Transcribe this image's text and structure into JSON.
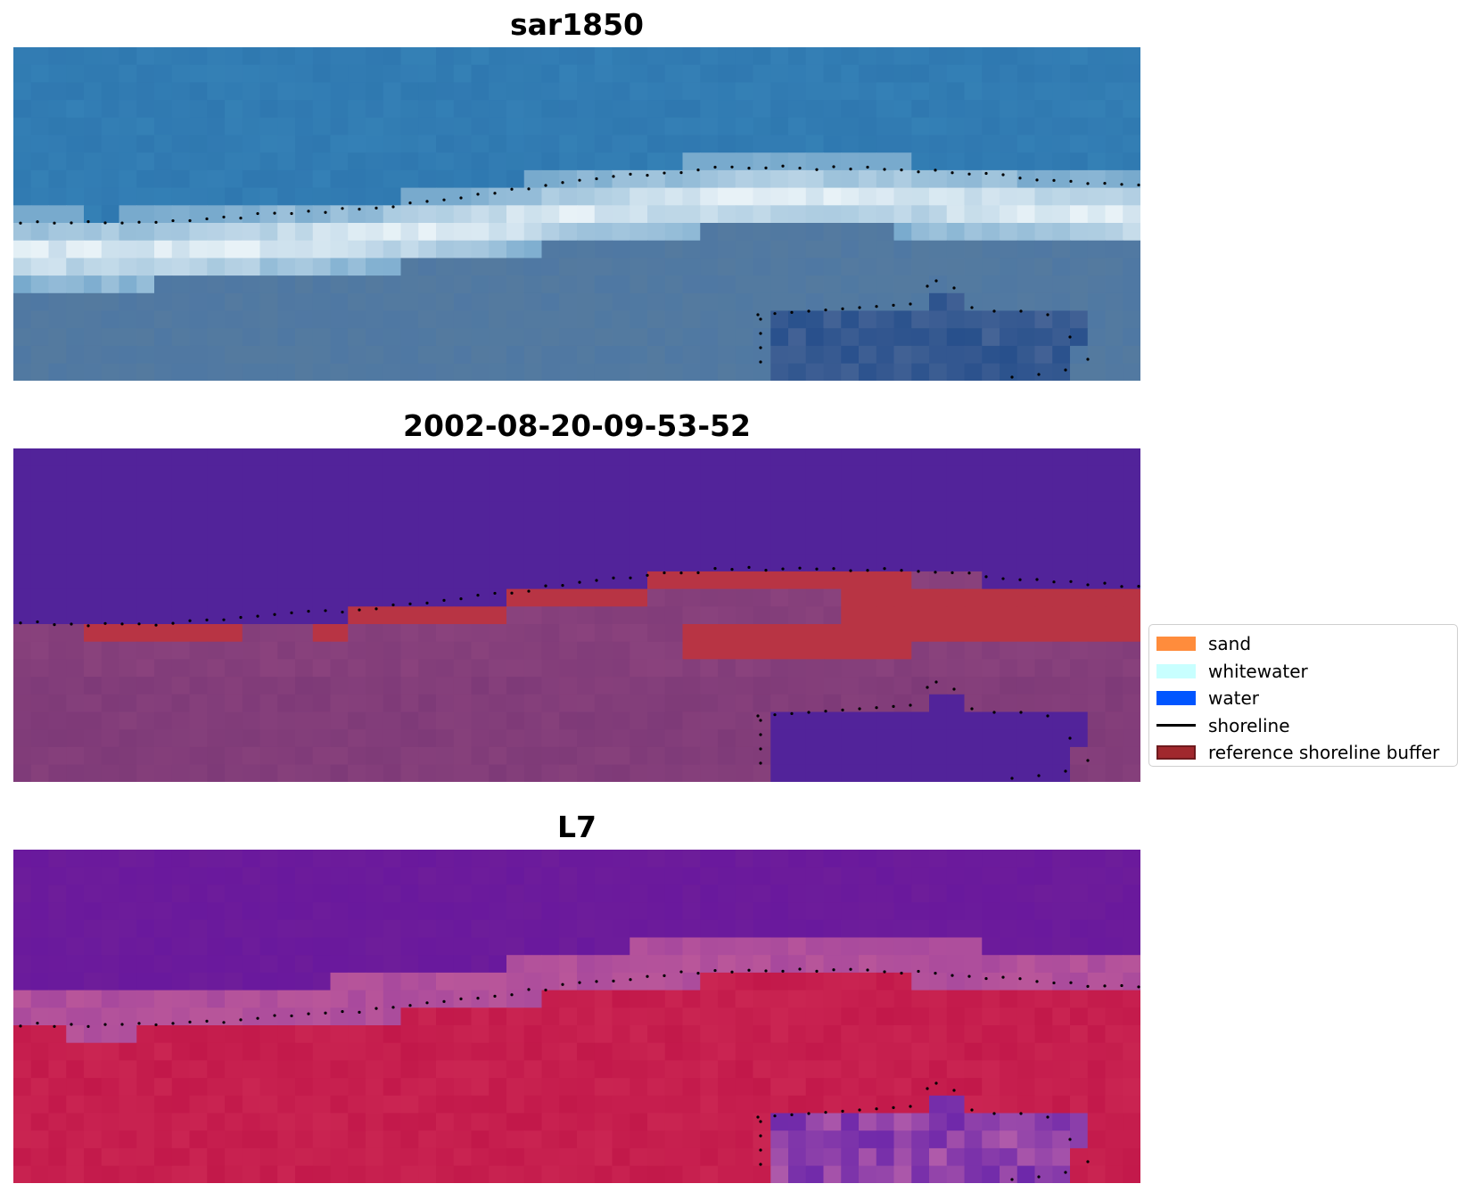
{
  "panels": [
    {
      "title": "sar1850",
      "kind": "rgb"
    },
    {
      "title": "2002-08-20-09-53-52",
      "kind": "classified"
    },
    {
      "title": "L7",
      "kind": "index"
    }
  ],
  "legend": {
    "items": [
      {
        "label": "sand",
        "color": "#ff8c3c",
        "type": "patch"
      },
      {
        "label": "whitewater",
        "color": "#c8ffff",
        "type": "patch"
      },
      {
        "label": "water",
        "color": "#0055ff",
        "type": "patch"
      },
      {
        "label": "shoreline",
        "color": "#000000",
        "type": "line"
      },
      {
        "label": "reference shoreline buffer",
        "color": "#a0282d",
        "type": "patch",
        "edge": "#6e1a1e"
      }
    ]
  },
  "colors": {
    "rgb_sea": "#2f78b0",
    "rgb_whitewater": "#e8f2f7",
    "rgb_land": "#4f78a3",
    "class_water": "#52239a",
    "class_land": "#7e3a78",
    "class_buffer": "#b83444",
    "index_top": "#6e1d9a",
    "index_band": "#b9569a",
    "index_bottom": "#c2184a"
  }
}
